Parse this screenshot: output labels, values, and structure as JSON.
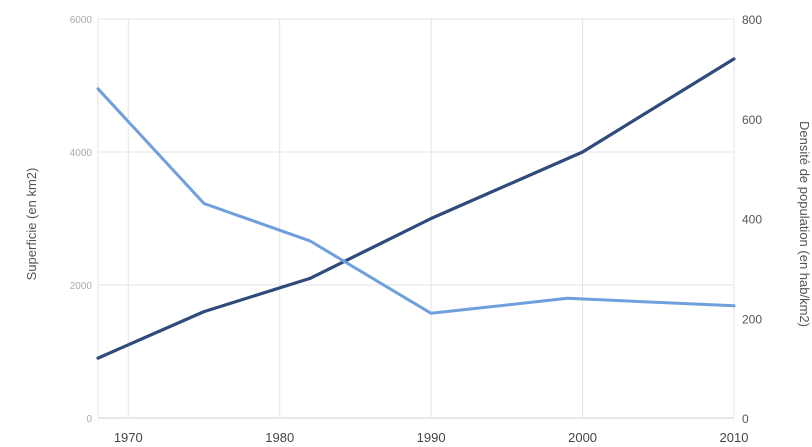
{
  "chart_data": {
    "type": "line",
    "x": [
      1968,
      1975,
      1982,
      1990,
      1999,
      2010
    ],
    "x_ticks": [
      "1970",
      "1980",
      "1990",
      "2000",
      "2010"
    ],
    "x_tick_values": [
      1970,
      1980,
      1990,
      2000,
      2010
    ],
    "xlim": [
      1968,
      2010
    ],
    "left_axis": {
      "label": "Superficie (en km2)",
      "ticks": [
        "0",
        "2000",
        "4000",
        "6000"
      ],
      "tick_values": [
        0,
        2000,
        4000,
        6000
      ],
      "ylim": [
        0,
        6000
      ]
    },
    "right_axis": {
      "label": "Densité de population (en hab/km2)",
      "ticks": [
        "0",
        "200",
        "400",
        "600",
        "800"
      ],
      "tick_values": [
        0,
        200,
        400,
        600,
        800
      ],
      "ylim": [
        0,
        800
      ]
    },
    "series": [
      {
        "axis": "left",
        "color": "#2f4b7c",
        "x": [
          1968,
          1975,
          1982,
          1990,
          2000,
          2010
        ],
        "values": [
          900,
          1600,
          2100,
          3000,
          4000,
          5400
        ]
      },
      {
        "axis": "right",
        "color": "#6f9fdc",
        "x": [
          1968,
          1975,
          1982,
          1990,
          1999,
          2010
        ],
        "values": [
          660,
          430,
          355,
          210,
          240,
          225
        ]
      }
    ],
    "grid": true
  }
}
